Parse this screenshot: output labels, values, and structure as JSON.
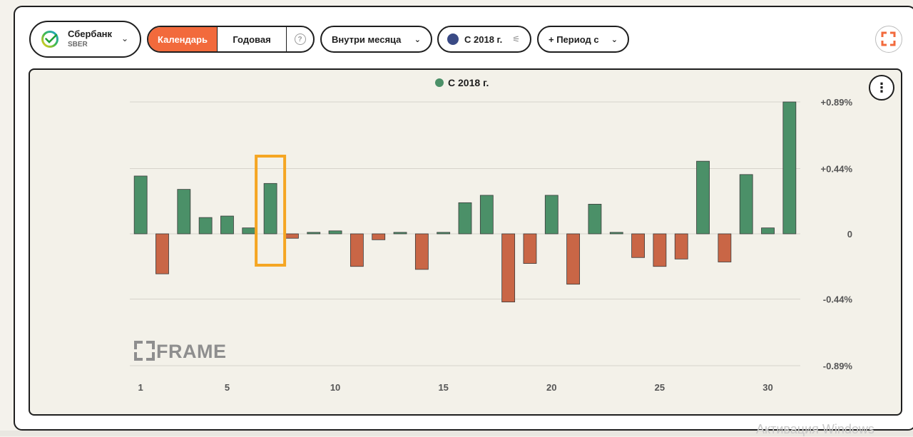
{
  "ticker": {
    "name": "Сбербанк",
    "symbol": "SBER",
    "logo_icon": "sber-logo-icon"
  },
  "modes": {
    "calendar": "Календарь",
    "yearly": "Годовая",
    "help": "?"
  },
  "dropdowns": {
    "month": "Внутри месяца",
    "since": "С 2018 г.",
    "period": "+ Период с"
  },
  "colors": {
    "accent": "#f26a3c",
    "positive": "#4b9068",
    "negative": "#c96646",
    "highlight": "#f5a623",
    "series_dot": "#3a4a85"
  },
  "watermark": {
    "brand": "FRAME",
    "os_notice": "Активация Windows"
  },
  "chart_data": {
    "type": "bar",
    "legend": "С 2018 г.",
    "x": [
      1,
      2,
      3,
      4,
      5,
      6,
      7,
      8,
      9,
      10,
      11,
      12,
      13,
      14,
      15,
      16,
      17,
      18,
      19,
      20,
      21,
      22,
      23,
      24,
      25,
      26,
      27,
      28,
      29,
      30,
      31
    ],
    "x_tick_labels": [
      "1",
      "5",
      "10",
      "15",
      "20",
      "25",
      "30"
    ],
    "x_ticks": [
      1,
      5,
      10,
      15,
      20,
      25,
      30
    ],
    "values": [
      0.39,
      -0.27,
      0.3,
      0.11,
      0.12,
      0.04,
      0.34,
      -0.03,
      0.01,
      0.02,
      -0.22,
      -0.04,
      0.01,
      -0.24,
      0.01,
      0.21,
      0.26,
      -0.46,
      -0.2,
      0.26,
      -0.34,
      0.2,
      0.01,
      -0.16,
      -0.22,
      -0.17,
      0.49,
      -0.19,
      0.4,
      0.04,
      0.89
    ],
    "y_tick_labels": [
      "+0.89%",
      "+0.44%",
      "0",
      "-0.44%",
      "-0.89%"
    ],
    "y_ticks": [
      0.89,
      0.44,
      0,
      -0.44,
      -0.89
    ],
    "ylim": [
      -0.89,
      0.89
    ],
    "highlight_day": 7,
    "grid": true,
    "legend_position": "top-center",
    "y_axis_position": "right"
  }
}
